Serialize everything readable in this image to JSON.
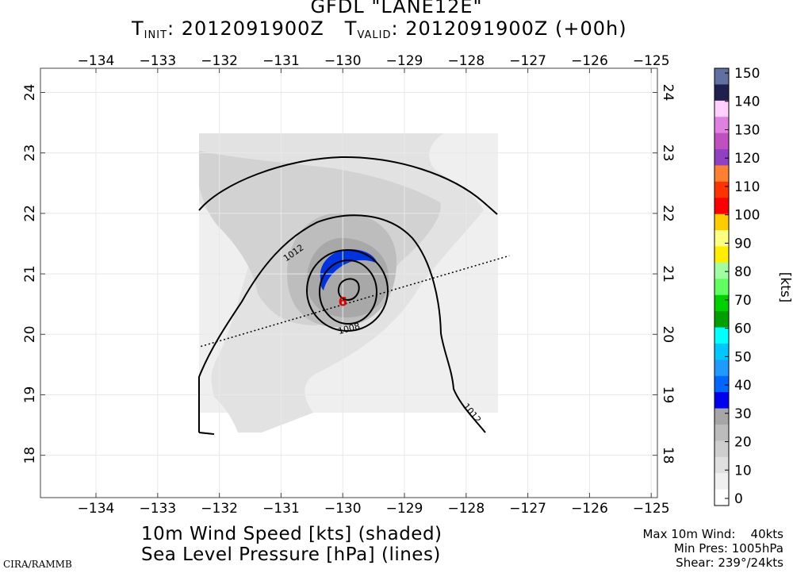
{
  "header": {
    "title": "GFDL \"LANE12E\"",
    "t_init_label": "T",
    "t_init_sub": "INIT",
    "t_init_value": ": 2012091900Z",
    "t_valid_label": "T",
    "t_valid_sub": "VALID",
    "t_valid_value": ": 2012091900Z (+00h)"
  },
  "map": {
    "lon_ticks": [
      "-134",
      "-133",
      "-132",
      "-131",
      "-130",
      "-129",
      "-128",
      "-127",
      "-126",
      "-125"
    ],
    "lat_ticks": [
      "18",
      "19",
      "20",
      "21",
      "22",
      "23",
      "24"
    ],
    "lon_range": [
      -134.9,
      -124.9
    ],
    "lat_range": [
      17.3,
      24.4
    ],
    "contour_labels": [
      {
        "text": "1012",
        "lon": -130.8,
        "lat": 21.35
      },
      {
        "text": "1008",
        "lon": -129.9,
        "lat": 20.1
      },
      {
        "text": "1012",
        "lon": -127.9,
        "lat": 18.7
      }
    ],
    "storm_center": {
      "symbol": "6",
      "lon": -130.0,
      "lat": 20.55,
      "color": "#e00000"
    },
    "shear_line": {
      "from": {
        "lon": -132.3,
        "lat": 19.8
      },
      "to": {
        "lon": -127.3,
        "lat": 21.3
      }
    }
  },
  "colorbar": {
    "unit_label": "[kts]",
    "labels": [
      "0",
      "10",
      "20",
      "30",
      "40",
      "50",
      "60",
      "70",
      "80",
      "90",
      "100",
      "110",
      "120",
      "130",
      "140",
      "150"
    ],
    "colors": [
      "#ffffff",
      "#f0f0f0",
      "#e0e0e0",
      "#cecece",
      "#bcbcbc",
      "#a6a6a6",
      "#0000ee",
      "#0066ff",
      "#1e9bff",
      "#00c8ff",
      "#00ffff",
      "#00a000",
      "#00d000",
      "#60ff60",
      "#a0ffa0",
      "#ffee00",
      "#ffff80",
      "#ffcc00",
      "#ff0000",
      "#ff3300",
      "#ff8030",
      "#9040c0",
      "#c050c0",
      "#e080e0",
      "#ffd0ff",
      "#202050",
      "#6070a0"
    ]
  },
  "captions": {
    "line1": "10m Wind Speed [kts] (shaded)",
    "line2": "Sea Level Pressure [hPa] (lines)"
  },
  "stats": {
    "max_wind": "Max 10m Wind:    40kts",
    "min_pres": "Min Pres: 1005hPa",
    "shear": "Shear: 239°/24kts"
  },
  "credit": "CIRA/RAMMB"
}
